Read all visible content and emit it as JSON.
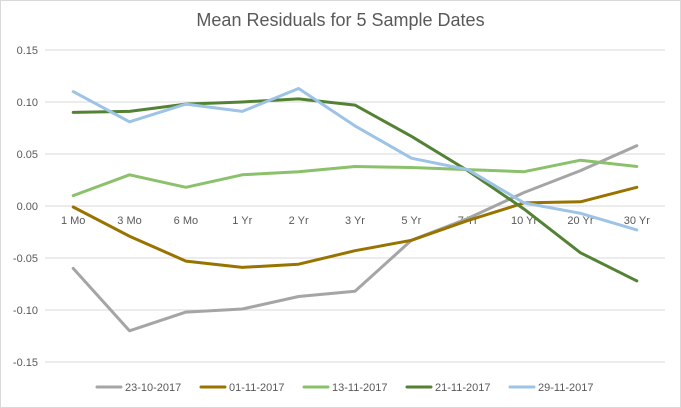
{
  "chart_data": {
    "type": "line",
    "title": "Mean Residuals for 5 Sample Dates",
    "xlabel": "",
    "ylabel": "",
    "categories": [
      "1 Mo",
      "3 Mo",
      "6 Mo",
      "1 Yr",
      "2 Yr",
      "3 Yr",
      "5 Yr",
      "7 Yr",
      "10 Yr",
      "20 Yr",
      "30 Yr"
    ],
    "ylim": [
      -0.15,
      0.15
    ],
    "yticks": [
      "0.15",
      "0.10",
      "0.05",
      "0.00",
      "-0.05",
      "-0.10",
      "-0.15"
    ],
    "grid": true,
    "legend_position": "bottom",
    "series": [
      {
        "name": "23-10-2017",
        "color": "#a5a5a5",
        "values": [
          -0.06,
          -0.12,
          -0.102,
          -0.099,
          -0.087,
          -0.082,
          -0.033,
          -0.012,
          0.013,
          0.034,
          0.058
        ]
      },
      {
        "name": "01-11-2017",
        "color": "#997300",
        "values": [
          -0.001,
          -0.029,
          -0.053,
          -0.059,
          -0.056,
          -0.043,
          -0.033,
          -0.014,
          0.003,
          0.004,
          0.018
        ]
      },
      {
        "name": "13-11-2017",
        "color": "#8bc16a",
        "values": [
          0.01,
          0.03,
          0.018,
          0.03,
          0.033,
          0.038,
          0.037,
          0.035,
          0.033,
          0.044,
          0.038
        ]
      },
      {
        "name": "21-11-2017",
        "color": "#548235",
        "values": [
          0.09,
          0.091,
          0.098,
          0.1,
          0.103,
          0.097,
          0.067,
          0.034,
          -0.003,
          -0.045,
          -0.072
        ]
      },
      {
        "name": "29-11-2017",
        "color": "#9dc3e6",
        "values": [
          0.11,
          0.081,
          0.098,
          0.091,
          0.113,
          0.077,
          0.046,
          0.035,
          0.003,
          -0.007,
          -0.023
        ]
      }
    ]
  }
}
